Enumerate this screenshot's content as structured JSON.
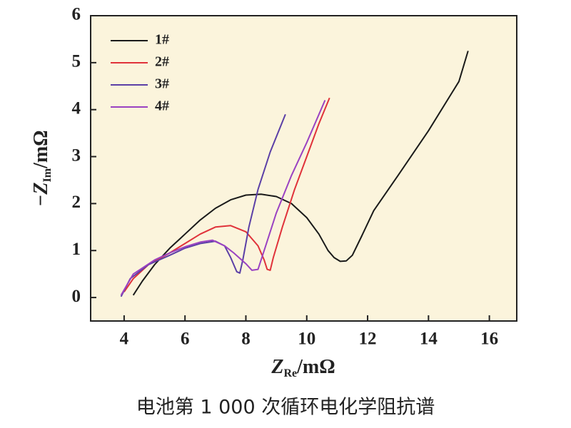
{
  "chart_data": {
    "type": "line",
    "title": "电池第 1 000 次循环电化学阻抗谱",
    "x_label": {
      "main": "Z",
      "sub": "Re",
      "unit": "/mΩ"
    },
    "y_label": {
      "main": "−Z",
      "sub": "Im",
      "unit": "/mΩ"
    },
    "xlim": [
      2.9,
      16.9
    ],
    "ylim": [
      -0.5,
      6
    ],
    "xticks": [
      4,
      6,
      8,
      10,
      12,
      14,
      16
    ],
    "yticks": [
      0,
      1,
      2,
      3,
      4,
      5,
      6
    ],
    "legend": "upper left",
    "series": [
      {
        "name": "1#",
        "color": "#1a1a1a",
        "x": [
          4.3,
          4.6,
          5,
          5.5,
          6,
          6.5,
          7,
          7.5,
          8,
          8.5,
          9,
          9.5,
          10,
          10.4,
          10.7,
          10.9,
          11.1,
          11.3,
          11.5,
          11.8,
          12.2,
          13,
          14,
          15,
          15.3
        ],
        "values": [
          0.05,
          0.35,
          0.7,
          1.05,
          1.35,
          1.65,
          1.9,
          2.08,
          2.18,
          2.2,
          2.15,
          2.0,
          1.7,
          1.35,
          1.0,
          0.85,
          0.77,
          0.78,
          0.9,
          1.3,
          1.85,
          2.6,
          3.55,
          4.6,
          5.25
        ]
      },
      {
        "name": "2#",
        "color": "#e0323a",
        "x": [
          4.0,
          4.3,
          4.8,
          5.5,
          6,
          6.5,
          7,
          7.5,
          8,
          8.4,
          8.6,
          8.7,
          8.8,
          8.9,
          9.2,
          9.6,
          10,
          10.4,
          10.75
        ],
        "values": [
          0.12,
          0.4,
          0.7,
          0.95,
          1.15,
          1.35,
          1.5,
          1.53,
          1.4,
          1.1,
          0.8,
          0.6,
          0.58,
          0.85,
          1.5,
          2.3,
          3.0,
          3.7,
          4.25
        ]
      },
      {
        "name": "3#",
        "color": "#5b3fa6",
        "x": [
          3.9,
          4.2,
          4.8,
          5.5,
          6,
          6.5,
          7,
          7.3,
          7.5,
          7.7,
          7.8,
          7.9,
          8.1,
          8.4,
          8.8,
          9.3
        ],
        "values": [
          0.02,
          0.4,
          0.7,
          0.9,
          1.05,
          1.15,
          1.2,
          1.1,
          0.85,
          0.55,
          0.52,
          0.8,
          1.5,
          2.3,
          3.1,
          3.9
        ]
      },
      {
        "name": "4#",
        "color": "#9a42c2",
        "x": [
          3.9,
          4.3,
          5,
          5.5,
          6,
          6.5,
          6.9,
          7.3,
          7.6,
          8,
          8.2,
          8.4,
          8.6,
          9,
          9.5,
          10,
          10.6
        ],
        "values": [
          0.05,
          0.5,
          0.8,
          0.95,
          1.08,
          1.18,
          1.22,
          1.1,
          0.95,
          0.72,
          0.58,
          0.6,
          1.0,
          1.8,
          2.6,
          3.3,
          4.2
        ]
      }
    ]
  }
}
